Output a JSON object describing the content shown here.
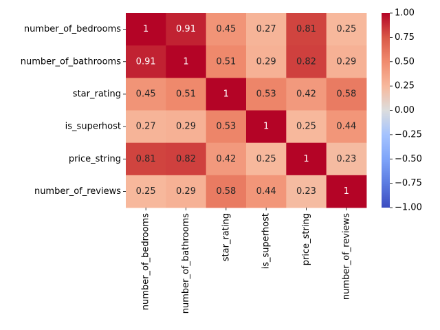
{
  "chart_data": {
    "type": "heatmap",
    "title": "",
    "xlabel": "",
    "ylabel": "",
    "rows": [
      "number_of_bedrooms",
      "number_of_bathrooms",
      "star_rating",
      "is_superhost",
      "price_string",
      "number_of_reviews"
    ],
    "columns": [
      "number_of_bedrooms",
      "number_of_bathrooms",
      "star_rating",
      "is_superhost",
      "price_string",
      "number_of_reviews"
    ],
    "values": [
      [
        1,
        0.91,
        0.45,
        0.27,
        0.81,
        0.25
      ],
      [
        0.91,
        1,
        0.51,
        0.29,
        0.82,
        0.29
      ],
      [
        0.45,
        0.51,
        1,
        0.53,
        0.42,
        0.58
      ],
      [
        0.27,
        0.29,
        0.53,
        1,
        0.25,
        0.44
      ],
      [
        0.81,
        0.82,
        0.42,
        0.25,
        1,
        0.23
      ],
      [
        0.25,
        0.29,
        0.58,
        0.44,
        0.23,
        1
      ]
    ],
    "colormap": "coolwarm",
    "vmin": -1,
    "vmax": 1,
    "colorbar_ticks": [
      "1.00",
      "0.75",
      "0.50",
      "0.25",
      "0.00",
      "−0.25",
      "−0.50",
      "−0.75",
      "−1.00"
    ],
    "colorbar_tick_values": [
      1,
      0.75,
      0.5,
      0.25,
      0,
      -0.25,
      -0.5,
      -0.75,
      -1
    ]
  }
}
